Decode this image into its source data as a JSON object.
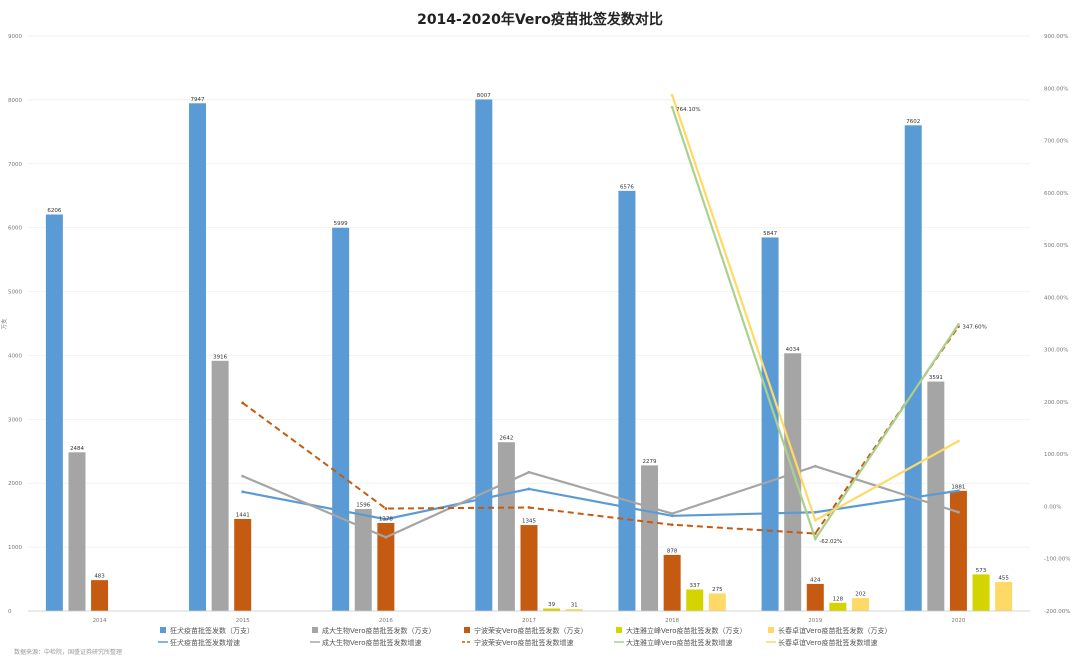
{
  "chart_data": {
    "type": "bar",
    "title": "2014-2020年Vero疫苗批签发数对比",
    "ylabel": "万支",
    "footnote": "数据来源：中检院，国盛证券研究所整理",
    "categories": [
      "2014",
      "2015",
      "2016",
      "2017",
      "2018",
      "2019",
      "2020"
    ],
    "ylim": [
      0,
      9000
    ],
    "y_ticks": [
      "0",
      "1000",
      "2000",
      "3000",
      "4000",
      "5000",
      "6000",
      "7000",
      "8000",
      "9000"
    ],
    "y2lim": [
      -2.0,
      9.0
    ],
    "y2_ticks": [
      "-200.00%",
      "-100.00%",
      "0.00%",
      "100.00%",
      "200.00%",
      "300.00%",
      "400.00%",
      "500.00%",
      "600.00%",
      "700.00%",
      "800.00%",
      "900.00%"
    ],
    "series": [
      {
        "name": "狂犬疫苗批签发数（万支）",
        "color": "#5b9bd5",
        "values": [
          6206,
          7947,
          5999,
          8007,
          6576,
          5847,
          7602
        ],
        "labels": [
          "6206",
          "7947",
          "5999",
          "8007",
          "6576",
          "5847",
          "7602"
        ]
      },
      {
        "name": "成大生物Vero疫苗批签发数（万支）",
        "color": "#a5a5a5",
        "values": [
          2484,
          3916,
          1596,
          2642,
          2279,
          4034,
          3591
        ],
        "labels": [
          "2484",
          "3916",
          "1596",
          "2642",
          "2279",
          "4034",
          "3591"
        ]
      },
      {
        "name": "宁波荣安Vero疫苗批签发数（万支）",
        "color": "#c55a11",
        "values": [
          483,
          1441,
          1378,
          1345,
          878,
          424,
          1881
        ],
        "labels": [
          "483",
          "1441",
          "1378",
          "1345",
          "878",
          "424",
          "1881"
        ]
      },
      {
        "name": "大连雅立峰Vero疫苗批签发数（万支）",
        "color": "#d4d400",
        "values": [
          null,
          null,
          null,
          39,
          337,
          128,
          573
        ],
        "labels": [
          "",
          "",
          "",
          "39",
          "337",
          "128",
          "573"
        ]
      },
      {
        "name": "长春卓谊Vero疫苗批签发数（万支）",
        "color": "#ffd966",
        "values": [
          null,
          null,
          null,
          31,
          275,
          202,
          455
        ],
        "labels": [
          "",
          "",
          "",
          "31",
          "275",
          "202",
          "455"
        ]
      }
    ],
    "line_series": [
      {
        "name": "狂犬疫苗批签发数增速",
        "color": "#5b9bd5",
        "dashed": false,
        "values": [
          null,
          0.28,
          -0.245,
          0.335,
          -0.179,
          -0.111,
          0.3
        ]
      },
      {
        "name": "成大生物Vero疫苗批签发数增速",
        "color": "#a5a5a5",
        "dashed": false,
        "values": [
          null,
          0.58,
          -0.59,
          0.655,
          -0.137,
          0.77,
          -0.11
        ]
      },
      {
        "name": "宁波荣安Vero疫苗批签发数增速",
        "color": "#c55a11",
        "dashed": true,
        "values": [
          null,
          1.98,
          -0.04,
          -0.02,
          -0.35,
          -0.517,
          3.44
        ]
      },
      {
        "name": "大连雅立峰Vero疫苗批签发数增速",
        "color": "#a9d18e",
        "dashed": false,
        "values": [
          null,
          null,
          null,
          null,
          7.64,
          -0.62,
          3.48
        ]
      },
      {
        "name": "长春卓谊Vero疫苗批签发数增速",
        "color": "#ffd966",
        "dashed": false,
        "values": [
          null,
          null,
          null,
          null,
          7.87,
          -0.265,
          1.25
        ]
      }
    ],
    "line_labels": [
      {
        "text": "764.10%",
        "series": 3,
        "point": 4
      },
      {
        "text": "-62.02%",
        "series": 3,
        "point": 5
      },
      {
        "text": "347.60%",
        "series": 3,
        "point": 6
      }
    ],
    "legend_position": "bottom"
  }
}
